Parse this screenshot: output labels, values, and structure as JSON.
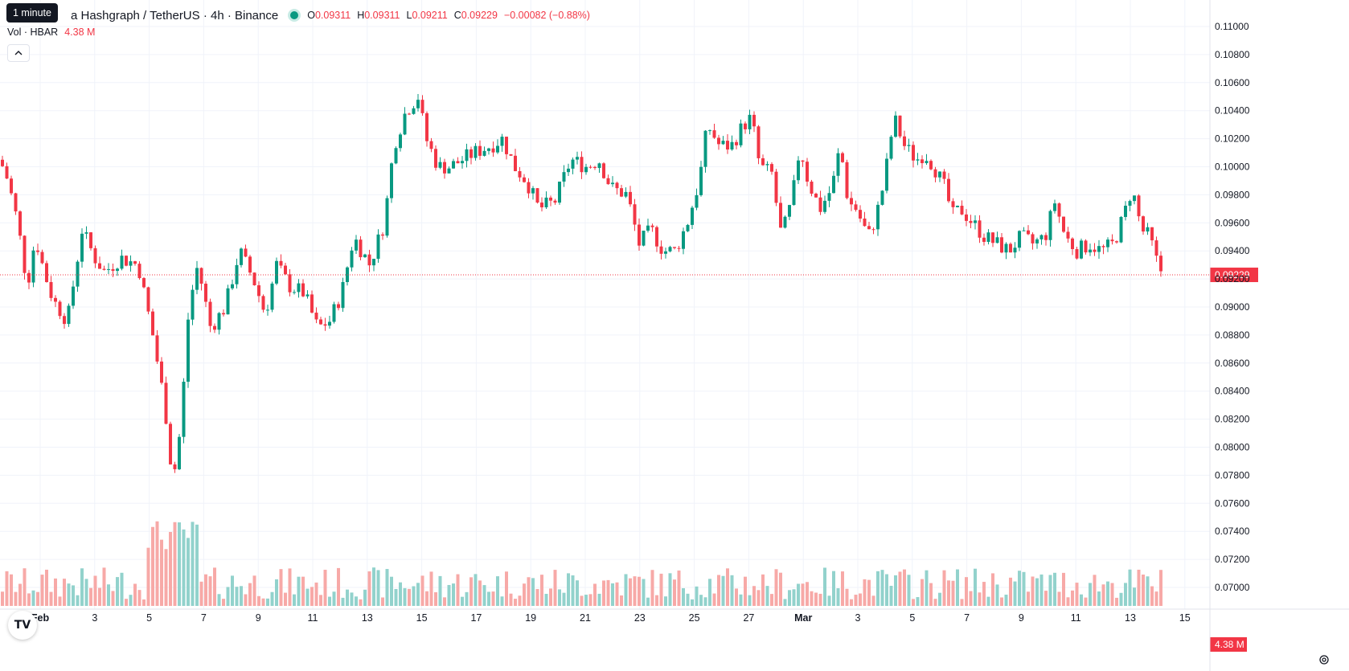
{
  "header": {
    "tooltip": "1 minute",
    "symbol_title": "a Hashgraph / TetherUS · 4h · Binance",
    "ohlc": [
      {
        "k": "O",
        "v": "0.09311"
      },
      {
        "k": "H",
        "v": "0.09311"
      },
      {
        "k": "L",
        "v": "0.09211"
      },
      {
        "k": "C",
        "v": "0.09229"
      }
    ],
    "change": "−0.00082 (−0.88%)"
  },
  "volume_legend": {
    "label": "Vol · HBAR",
    "value": "4.38 M"
  },
  "icons": {
    "collapse": "chevron-up-icon",
    "logo": "tradingview-logo",
    "settings": "gear-icon"
  },
  "logo_text": "TV",
  "colors": {
    "up": "#089981",
    "down": "#f23645",
    "vol_up": "#92d2cc",
    "vol_down": "#f7a9a7",
    "last_price": "#f23645"
  },
  "chart_data": {
    "type": "candlestick",
    "price_axis_ticks": [
      "0.11000",
      "0.10800",
      "0.10600",
      "0.10400",
      "0.10200",
      "0.10000",
      "0.09800",
      "0.09600",
      "0.09400",
      "0.09200",
      "0.09000",
      "0.08800",
      "0.08600",
      "0.08400",
      "0.08200",
      "0.08000",
      "0.07800",
      "0.07600",
      "0.07400",
      "0.07200",
      "0.07000"
    ],
    "ylim": [
      0.0692,
      0.111
    ],
    "time_axis_ticks": [
      "Feb",
      "3",
      "5",
      "7",
      "9",
      "11",
      "13",
      "15",
      "17",
      "19",
      "21",
      "23",
      "25",
      "27",
      "Mar",
      "3",
      "5",
      "7",
      "9",
      "11",
      "13",
      "15"
    ],
    "last_price": "0.09229",
    "last_volume": "4.38 M",
    "waypoints": [
      [
        0,
        0.1005
      ],
      [
        10,
        0.099
      ],
      [
        22,
        0.096
      ],
      [
        34,
        0.0915
      ],
      [
        44,
        0.095
      ],
      [
        55,
        0.0925
      ],
      [
        66,
        0.0905
      ],
      [
        84,
        0.089
      ],
      [
        102,
        0.0955
      ],
      [
        118,
        0.0935
      ],
      [
        130,
        0.0925
      ],
      [
        150,
        0.0935
      ],
      [
        172,
        0.093
      ],
      [
        190,
        0.088
      ],
      [
        205,
        0.083
      ],
      [
        215,
        0.0775
      ],
      [
        225,
        0.0815
      ],
      [
        235,
        0.09
      ],
      [
        246,
        0.093
      ],
      [
        262,
        0.0885
      ],
      [
        280,
        0.09
      ],
      [
        298,
        0.094
      ],
      [
        315,
        0.092
      ],
      [
        330,
        0.0895
      ],
      [
        344,
        0.093
      ],
      [
        360,
        0.0915
      ],
      [
        378,
        0.091
      ],
      [
        395,
        0.0885
      ],
      [
        410,
        0.089
      ],
      [
        425,
        0.091
      ],
      [
        440,
        0.095
      ],
      [
        460,
        0.093
      ],
      [
        478,
        0.096
      ],
      [
        490,
        0.1015
      ],
      [
        505,
        0.104
      ],
      [
        520,
        0.105
      ],
      [
        530,
        0.102
      ],
      [
        545,
        0.1
      ],
      [
        560,
        0.1
      ],
      [
        575,
        0.1005
      ],
      [
        590,
        0.101
      ],
      [
        610,
        0.1015
      ],
      [
        625,
        0.102
      ],
      [
        640,
        0.1
      ],
      [
        655,
        0.099
      ],
      [
        670,
        0.097
      ],
      [
        690,
        0.0975
      ],
      [
        710,
        0.1005
      ],
      [
        730,
        0.1
      ],
      [
        745,
        0.1005
      ],
      [
        760,
        0.0985
      ],
      [
        780,
        0.098
      ],
      [
        795,
        0.0945
      ],
      [
        810,
        0.0955
      ],
      [
        825,
        0.094
      ],
      [
        840,
        0.094
      ],
      [
        855,
        0.096
      ],
      [
        870,
        0.099
      ],
      [
        880,
        0.103
      ],
      [
        895,
        0.1015
      ],
      [
        910,
        0.1015
      ],
      [
        925,
        0.103
      ],
      [
        935,
        0.1035
      ],
      [
        945,
        0.1
      ],
      [
        960,
        0.0995
      ],
      [
        972,
        0.095
      ],
      [
        985,
        0.0975
      ],
      [
        995,
        0.1015
      ],
      [
        1005,
        0.099
      ],
      [
        1020,
        0.097
      ],
      [
        1035,
        0.0985
      ],
      [
        1045,
        0.1015
      ],
      [
        1055,
        0.0975
      ],
      [
        1065,
        0.097
      ],
      [
        1080,
        0.095
      ],
      [
        1090,
        0.0965
      ],
      [
        1100,
        0.099
      ],
      [
        1112,
        0.1035
      ],
      [
        1125,
        0.1015
      ],
      [
        1140,
        0.1005
      ],
      [
        1150,
        0.101
      ],
      [
        1162,
        0.1
      ],
      [
        1175,
        0.0985
      ],
      [
        1185,
        0.0965
      ],
      [
        1195,
        0.097
      ],
      [
        1210,
        0.096
      ],
      [
        1225,
        0.095
      ],
      [
        1240,
        0.0945
      ],
      [
        1255,
        0.094
      ],
      [
        1270,
        0.095
      ],
      [
        1285,
        0.0945
      ],
      [
        1300,
        0.095
      ],
      [
        1312,
        0.0975
      ],
      [
        1325,
        0.095
      ],
      [
        1340,
        0.094
      ],
      [
        1355,
        0.0945
      ],
      [
        1370,
        0.094
      ],
      [
        1385,
        0.0945
      ],
      [
        1398,
        0.0965
      ],
      [
        1408,
        0.0985
      ],
      [
        1420,
        0.0955
      ],
      [
        1430,
        0.095
      ],
      [
        1440,
        0.093
      ],
      [
        1447,
        0.0923
      ]
    ]
  }
}
